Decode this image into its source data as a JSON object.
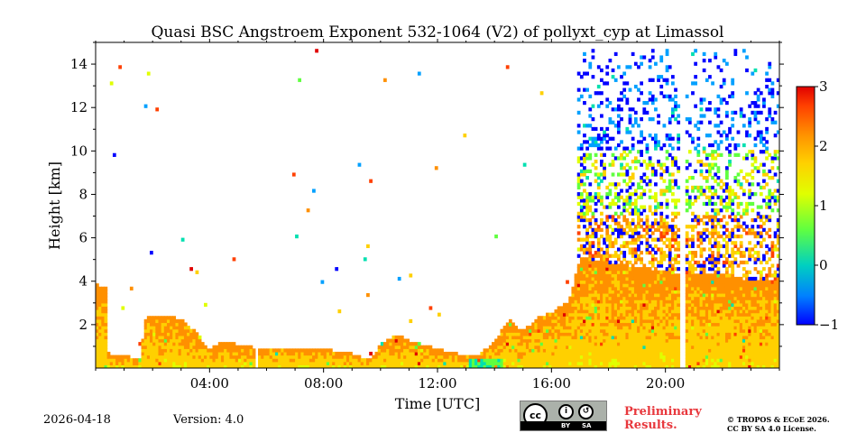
{
  "chart_data": {
    "type": "heatmap",
    "title": "Quasi BSC Angstroem Exponent 532-1064 (V2) of pollyxt_cyp at Limassol",
    "xlabel": "Time [UTC]",
    "ylabel": "Height [km]",
    "xlim": [
      0,
      24
    ],
    "ylim": [
      0,
      15
    ],
    "x_ticks": [
      4,
      8,
      12,
      16,
      20
    ],
    "x_tick_labels": [
      "04:00",
      "08:00",
      "12:00",
      "16:00",
      "20:00"
    ],
    "y_ticks": [
      2,
      4,
      6,
      8,
      10,
      12,
      14
    ],
    "y_tick_labels": [
      "2",
      "4",
      "6",
      "8",
      "10",
      "12",
      "14"
    ],
    "colorbar": {
      "min": -1,
      "max": 3,
      "ticks": [
        -1,
        0,
        1,
        2,
        3
      ],
      "tick_labels": [
        "−1",
        "0",
        "1",
        "2",
        "3"
      ],
      "colormap": [
        "#0000ff",
        "#00a0ff",
        "#00e0b0",
        "#60ff40",
        "#e0ff00",
        "#ffd000",
        "#ff9000",
        "#ff4000",
        "#e00000"
      ]
    },
    "profile_top_km": [
      [
        0.0,
        3.8
      ],
      [
        0.4,
        3.6
      ],
      [
        0.45,
        0.6
      ],
      [
        1.0,
        0.5
      ],
      [
        1.6,
        0.3
      ],
      [
        1.7,
        2.2
      ],
      [
        2.0,
        2.4
      ],
      [
        2.5,
        2.3
      ],
      [
        3.0,
        2.2
      ],
      [
        3.5,
        1.6
      ],
      [
        4.0,
        0.8
      ],
      [
        4.5,
        1.2
      ],
      [
        5.0,
        1.0
      ],
      [
        6.0,
        0.8
      ],
      [
        7.0,
        0.9
      ],
      [
        8.0,
        0.8
      ],
      [
        9.0,
        0.6
      ],
      [
        9.6,
        0.3
      ],
      [
        10.0,
        1.0
      ],
      [
        10.5,
        1.5
      ],
      [
        11.0,
        1.2
      ],
      [
        12.0,
        0.8
      ],
      [
        13.0,
        0.5
      ],
      [
        13.5,
        0.6
      ],
      [
        14.0,
        1.2
      ],
      [
        14.5,
        2.2
      ],
      [
        15.0,
        1.6
      ],
      [
        15.5,
        2.3
      ],
      [
        16.0,
        2.5
      ],
      [
        16.6,
        3.0
      ],
      [
        17.0,
        5.0
      ],
      [
        18.0,
        4.8
      ],
      [
        19.0,
        4.6
      ],
      [
        20.0,
        4.4
      ],
      [
        21.0,
        4.2
      ],
      [
        22.0,
        4.2
      ],
      [
        23.0,
        4.0
      ],
      [
        24.0,
        4.0
      ]
    ],
    "data_gaps_utc": [
      [
        20.55,
        20.75
      ],
      [
        5.55,
        5.7
      ]
    ],
    "sparse_cloud_region": {
      "from_utc": 16.8,
      "to_utc": 24,
      "height_km": [
        4,
        14.7
      ]
    }
  },
  "footer": {
    "date": "2026-04-18",
    "version": "Version: 4.0",
    "preliminary": [
      "Preliminary",
      "Results."
    ],
    "copyright": [
      "© TROPOS & ECoE 2026.",
      "CC BY SA 4.0 License."
    ],
    "license_badge": {
      "cc": "cc",
      "by": "BY",
      "sa": "SA"
    }
  }
}
